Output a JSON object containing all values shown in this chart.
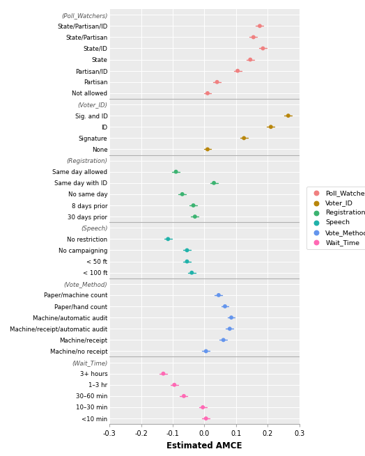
{
  "labels": [
    "(Poll_Watchers)",
    "State/Partisan/ID",
    "State/Partisan",
    "State/ID",
    "State",
    "Partisan/ID",
    "Partisan",
    "Not allowed",
    "(Voter_ID)",
    "Sig. and ID",
    "ID",
    "Signature",
    "None",
    "(Registration)",
    "Same day allowed",
    "Same day with ID",
    "No same day",
    "8 days prior",
    "30 days prior",
    "(Speech)",
    "No restriction",
    "No campaigning",
    "< 50 ft",
    "< 100 ft",
    "(Vote_Method)",
    "Paper/machine count",
    "Paper/hand count",
    "Machine/automatic audit",
    "Machine/receipt/automatic audit",
    "Machine/receipt",
    "Machine/no receipt",
    "(Wait_Time)",
    "3+ hours",
    "1–3 hr",
    "30–60 min",
    "10–30 min",
    "<10 min"
  ],
  "values": [
    null,
    0.175,
    0.155,
    0.185,
    0.145,
    0.105,
    0.04,
    0.01,
    null,
    0.265,
    0.21,
    0.125,
    0.01,
    null,
    -0.09,
    0.03,
    -0.07,
    -0.035,
    -0.03,
    null,
    -0.115,
    -0.055,
    -0.055,
    -0.04,
    null,
    0.045,
    0.065,
    0.085,
    0.08,
    0.06,
    0.005,
    null,
    -0.13,
    -0.095,
    -0.065,
    -0.005,
    0.005
  ],
  "errors": [
    null,
    0.012,
    0.012,
    0.012,
    0.012,
    0.012,
    0.012,
    0.012,
    null,
    0.012,
    0.012,
    0.012,
    0.012,
    null,
    0.012,
    0.012,
    0.012,
    0.012,
    0.012,
    null,
    0.012,
    0.012,
    0.012,
    0.012,
    null,
    0.012,
    0.012,
    0.012,
    0.012,
    0.012,
    0.012,
    null,
    0.012,
    0.012,
    0.012,
    0.012,
    0.012
  ],
  "colors": {
    "(Poll_Watchers)": null,
    "State/Partisan/ID": "#f08080",
    "State/Partisan": "#f08080",
    "State/ID": "#f08080",
    "State": "#f08080",
    "Partisan/ID": "#f08080",
    "Partisan": "#f08080",
    "Not allowed": "#f08080",
    "(Voter_ID)": null,
    "Sig. and ID": "#b8860b",
    "ID": "#b8860b",
    "Signature": "#b8860b",
    "None": "#b8860b",
    "(Registration)": null,
    "Same day allowed": "#3cb371",
    "Same day with ID": "#3cb371",
    "No same day": "#3cb371",
    "8 days prior": "#3cb371",
    "30 days prior": "#3cb371",
    "(Speech)": null,
    "No restriction": "#20b2aa",
    "No campaigning": "#20b2aa",
    "< 50 ft": "#20b2aa",
    "< 100 ft": "#20b2aa",
    "(Vote_Method)": null,
    "Paper/machine count": "#6495ed",
    "Paper/hand count": "#6495ed",
    "Machine/automatic audit": "#6495ed",
    "Machine/receipt/automatic audit": "#6495ed",
    "Machine/receipt": "#6495ed",
    "Machine/no receipt": "#6495ed",
    "(Wait_Time)": null,
    "3+ hours": "#ff69b4",
    "1–3 hr": "#ff69b4",
    "30–60 min": "#ff69b4",
    "10–30 min": "#ff69b4",
    "<10 min": "#ff69b4"
  },
  "xlabel": "Estimated AMCE",
  "xlim": [
    -0.3,
    0.3
  ],
  "xticks": [
    -0.3,
    -0.2,
    -0.1,
    0.0,
    0.1,
    0.2,
    0.3
  ],
  "legend_items": [
    {
      "label": "Poll_Watchers",
      "color": "#f08080"
    },
    {
      "label": "Voter_ID",
      "color": "#b8860b"
    },
    {
      "label": "Registration",
      "color": "#3cb371"
    },
    {
      "label": "Speech",
      "color": "#20b2aa"
    },
    {
      "label": "Vote_Method",
      "color": "#6495ed"
    },
    {
      "label": "Wait_Time",
      "color": "#ff69b4"
    }
  ],
  "group_boundaries_after_idx": [
    7,
    12,
    18,
    23,
    30
  ],
  "bg_color": "#ebebeb",
  "grid_color": "white"
}
